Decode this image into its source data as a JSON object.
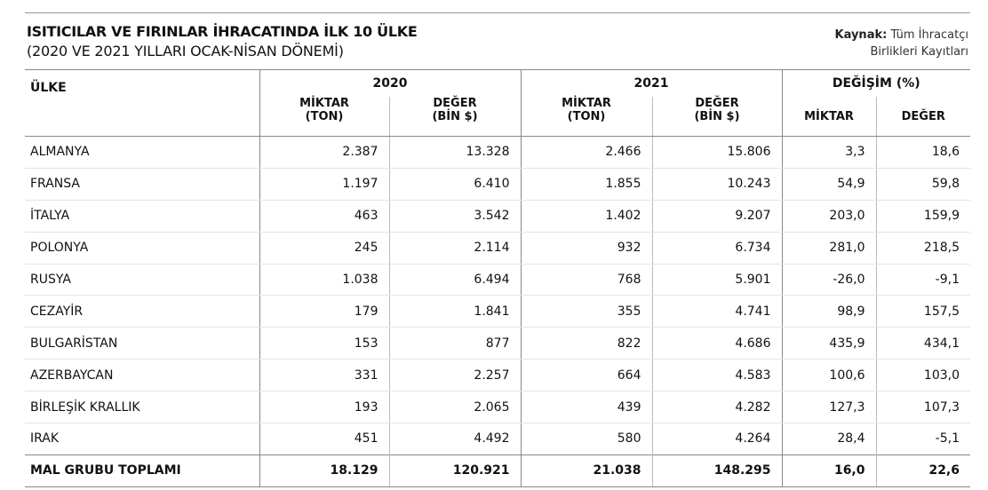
{
  "header": {
    "title": "ISITICILAR VE FIRINLAR İHRACATINDA İLK 10 ÜLKE",
    "subtitle": "(2020 VE 2021 YILLARI OCAK-NİSAN DÖNEMİ)",
    "source_label": "Kaynak:",
    "source_line1": "Tüm İhracatçı",
    "source_line2": "Birlikleri Kayıtları"
  },
  "table": {
    "country_header": "ÜLKE",
    "group_2020": "2020",
    "group_2021": "2021",
    "group_change": "DEĞİŞİM (%)",
    "sub": {
      "miktar_ton_1": "MİKTAR",
      "miktar_ton_2": "(TON)",
      "deger_bin_1": "DEĞER",
      "deger_bin_2": "(BİN $)",
      "miktar": "MİKTAR",
      "deger": "DEĞER"
    },
    "rows": [
      [
        "ALMANYA",
        "2.387",
        "13.328",
        "2.466",
        "15.806",
        "3,3",
        "18,6"
      ],
      [
        "FRANSA",
        "1.197",
        "6.410",
        "1.855",
        "10.243",
        "54,9",
        "59,8"
      ],
      [
        "İTALYA",
        "463",
        "3.542",
        "1.402",
        "9.207",
        "203,0",
        "159,9"
      ],
      [
        "POLONYA",
        "245",
        "2.114",
        "932",
        "6.734",
        "281,0",
        "218,5"
      ],
      [
        "RUSYA",
        "1.038",
        "6.494",
        "768",
        "5.901",
        "-26,0",
        "-9,1"
      ],
      [
        "CEZAYİR",
        "179",
        "1.841",
        "355",
        "4.741",
        "98,9",
        "157,5"
      ],
      [
        "BULGARİSTAN",
        "153",
        "877",
        "822",
        "4.686",
        "435,9",
        "434,1"
      ],
      [
        "AZERBAYCAN",
        "331",
        "2.257",
        "664",
        "4.583",
        "100,6",
        "103,0"
      ],
      [
        "BİRLEŞİK KRALLIK",
        "193",
        "2.065",
        "439",
        "4.282",
        "127,3",
        "107,3"
      ],
      [
        "IRAK",
        "451",
        "4.492",
        "580",
        "4.264",
        "28,4",
        "-5,1"
      ]
    ],
    "total": [
      "MAL GRUBU TOPLAMI",
      "18.129",
      "120.921",
      "21.038",
      "148.295",
      "16,0",
      "22,6"
    ]
  }
}
